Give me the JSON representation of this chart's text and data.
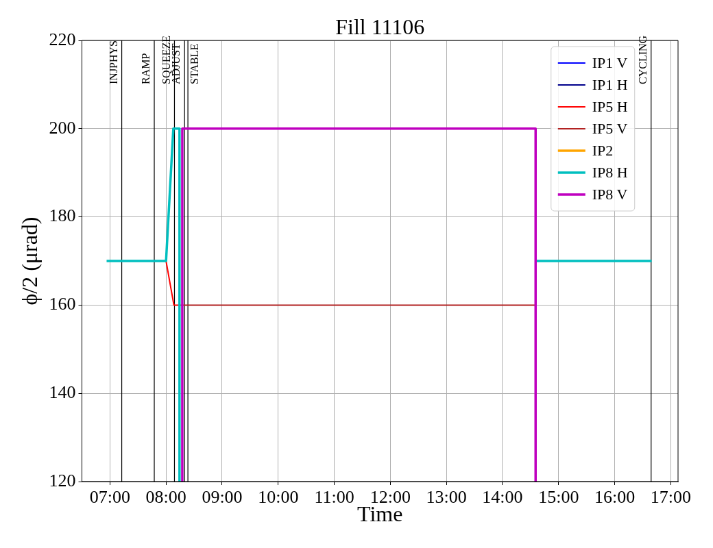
{
  "chart_data": {
    "type": "line",
    "title": "Fill 11106",
    "xlabel": "Time",
    "ylabel": "ϕ/2 (μrad)",
    "xlim": [
      6.5,
      17.13
    ],
    "xticks": [
      {
        "value": 7,
        "label": "07:00"
      },
      {
        "value": 8,
        "label": "08:00"
      },
      {
        "value": 9,
        "label": "09:00"
      },
      {
        "value": 10,
        "label": "10:00"
      },
      {
        "value": 11,
        "label": "11:00"
      },
      {
        "value": 12,
        "label": "12:00"
      },
      {
        "value": 13,
        "label": "13:00"
      },
      {
        "value": 14,
        "label": "14:00"
      },
      {
        "value": 15,
        "label": "15:00"
      },
      {
        "value": 16,
        "label": "16:00"
      },
      {
        "value": 17,
        "label": "17:00"
      }
    ],
    "ylim": [
      120,
      220
    ],
    "yticks": [
      120,
      140,
      160,
      180,
      200,
      220
    ],
    "grid": true,
    "legend": "top right",
    "marker": "none",
    "series": [
      {
        "name": "IP1 V",
        "color": "#0000ff"
      },
      {
        "name": "IP1 H",
        "color": "#00008b"
      },
      {
        "name": "IP5 H",
        "color": "#ff0000",
        "x": [
          8.0,
          8.14,
          8.22
        ],
        "values": [
          170,
          160,
          160
        ]
      },
      {
        "name": "IP5 V",
        "color": "#b22222",
        "x": [
          8.22,
          14.59
        ],
        "values": [
          160,
          160
        ]
      },
      {
        "name": "IP2",
        "color": "#ffa500"
      },
      {
        "name": "IP8 H",
        "color": "#00bfbf",
        "x": [
          6.94,
          8.0,
          8.13,
          8.24,
          8.24,
          null,
          14.61,
          16.66
        ],
        "values": [
          170,
          170,
          200,
          200,
          120,
          null,
          170,
          170
        ]
      },
      {
        "name": "IP8 V",
        "color": "#bf00bf",
        "x": [
          8.29,
          8.29,
          14.59,
          14.59
        ],
        "values": [
          120,
          200,
          200,
          120
        ]
      }
    ],
    "ref_lines": [
      {
        "axis": "x",
        "value": 7.21,
        "label": "INJPHYS",
        "color": "#000000"
      },
      {
        "axis": "x",
        "value": 7.79,
        "label": "RAMP",
        "color": "#000000"
      },
      {
        "axis": "x",
        "value": 8.15,
        "label": "SQUEEZE",
        "color": "#000000"
      },
      {
        "axis": "x",
        "value": 8.33,
        "label": "ADJUST",
        "color": "#000000"
      },
      {
        "axis": "x",
        "value": 8.39,
        "label": "STABLE",
        "color": "#000000"
      },
      {
        "axis": "x",
        "value": 16.65,
        "label": "CYCLING",
        "color": "#000000"
      }
    ]
  }
}
